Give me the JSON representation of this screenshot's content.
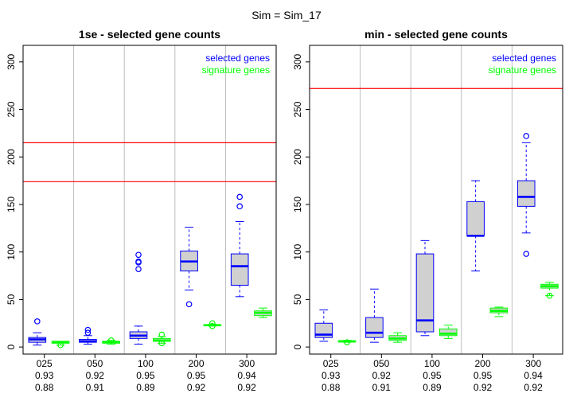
{
  "figure": {
    "title": "Sim = Sim_17"
  },
  "chart_data": [
    {
      "type": "boxplot",
      "title": "1se - selected gene counts",
      "ylim": [
        0,
        310
      ],
      "yticks": [
        0,
        50,
        100,
        150,
        200,
        250,
        300
      ],
      "grid": "vertical",
      "legend_position": "top-right",
      "legend": [
        {
          "label": "selected genes",
          "color": "#0000ff"
        },
        {
          "label": "signature genes",
          "color": "#00ff00"
        }
      ],
      "hlines": {
        "color": "#ff0000",
        "values": [
          174,
          215
        ]
      },
      "groups": [
        {
          "label": "025",
          "row2": "0.93",
          "row3": "0.88"
        },
        {
          "label": "050",
          "row2": "0.92",
          "row3": "0.91"
        },
        {
          "label": "100",
          "row2": "0.95",
          "row3": "0.89"
        },
        {
          "label": "200",
          "row2": "0.95",
          "row3": "0.92"
        },
        {
          "label": "300",
          "row2": "0.94",
          "row3": "0.92"
        }
      ],
      "series": [
        {
          "name": "selected genes",
          "color": "#0000ff",
          "fill": "#d0d0d0",
          "boxes": [
            {
              "min": 2,
              "q1": 5,
              "median": 8,
              "q3": 10,
              "max": 15,
              "outliers": [
                27
              ]
            },
            {
              "min": 3,
              "q1": 5,
              "median": 6,
              "q3": 8,
              "max": 12,
              "outliers": [
                15,
                18
              ]
            },
            {
              "min": 3,
              "q1": 9,
              "median": 12,
              "q3": 16,
              "max": 22,
              "outliers": [
                82,
                89,
                90,
                97
              ]
            },
            {
              "min": 60,
              "q1": 80,
              "median": 90,
              "q3": 101,
              "max": 126,
              "outliers": [
                45
              ]
            },
            {
              "min": 53,
              "q1": 65,
              "median": 85,
              "q3": 98,
              "max": 132,
              "outliers": [
                148,
                158
              ]
            }
          ]
        },
        {
          "name": "signature genes",
          "color": "#00ff00",
          "fill": "#d0d0d0",
          "boxes": [
            {
              "min": 2,
              "q1": 4,
              "median": 5,
              "q3": 6,
              "max": 6,
              "outliers": [
                2
              ]
            },
            {
              "min": 3,
              "q1": 4,
              "median": 5,
              "q3": 6,
              "max": 7,
              "outliers": [
                7
              ]
            },
            {
              "min": 4,
              "q1": 6,
              "median": 7,
              "q3": 9,
              "max": 11,
              "outliers": [
                4,
                13
              ]
            },
            {
              "min": 22,
              "q1": 22.5,
              "median": 23,
              "q3": 23.5,
              "max": 24,
              "outliers": [
                25,
                22
              ]
            },
            {
              "min": 31,
              "q1": 33,
              "median": 36,
              "q3": 38,
              "max": 41,
              "outliers": []
            }
          ]
        }
      ]
    },
    {
      "type": "boxplot",
      "title": "min - selected gene counts",
      "ylim": [
        0,
        310
      ],
      "yticks": [
        0,
        50,
        100,
        150,
        200,
        250,
        300
      ],
      "grid": "vertical",
      "legend_position": "top-right",
      "legend": [
        {
          "label": "selected genes",
          "color": "#0000ff"
        },
        {
          "label": "signature genes",
          "color": "#00ff00"
        }
      ],
      "hlines": {
        "color": "#ff0000",
        "values": [
          272
        ]
      },
      "groups": [
        {
          "label": "025",
          "row2": "0.93",
          "row3": "0.88"
        },
        {
          "label": "050",
          "row2": "0.92",
          "row3": "0.91"
        },
        {
          "label": "100",
          "row2": "0.95",
          "row3": "0.89"
        },
        {
          "label": "200",
          "row2": "0.95",
          "row3": "0.92"
        },
        {
          "label": "300",
          "row2": "0.94",
          "row3": "0.92"
        }
      ],
      "series": [
        {
          "name": "selected genes",
          "color": "#0000ff",
          "fill": "#d0d0d0",
          "boxes": [
            {
              "min": 6,
              "q1": 10,
              "median": 13,
              "q3": 25,
              "max": 39,
              "outliers": []
            },
            {
              "min": 5,
              "q1": 10,
              "median": 15,
              "q3": 31,
              "max": 61,
              "outliers": []
            },
            {
              "min": 12,
              "q1": 16,
              "median": 28,
              "q3": 98,
              "max": 112,
              "outliers": []
            },
            {
              "min": 80,
              "q1": 117,
              "median": 117,
              "q3": 153,
              "max": 175,
              "outliers": []
            },
            {
              "min": 120,
              "q1": 148,
              "median": 158,
              "q3": 175,
              "max": 215,
              "outliers": [
                98,
                222
              ]
            }
          ]
        },
        {
          "name": "signature genes",
          "color": "#00ff00",
          "fill": "#d0d0d0",
          "boxes": [
            {
              "min": 5,
              "q1": 5.5,
              "median": 6,
              "q3": 6.5,
              "max": 7,
              "outliers": [
                5
              ]
            },
            {
              "min": 5,
              "q1": 7,
              "median": 9,
              "q3": 12,
              "max": 15,
              "outliers": []
            },
            {
              "min": 9,
              "q1": 12,
              "median": 14,
              "q3": 19,
              "max": 23,
              "outliers": []
            },
            {
              "min": 32,
              "q1": 36,
              "median": 38,
              "q3": 41,
              "max": 42,
              "outliers": []
            },
            {
              "min": 54,
              "q1": 62,
              "median": 64,
              "q3": 66,
              "max": 68,
              "outliers": [
                54
              ]
            }
          ]
        }
      ]
    }
  ]
}
